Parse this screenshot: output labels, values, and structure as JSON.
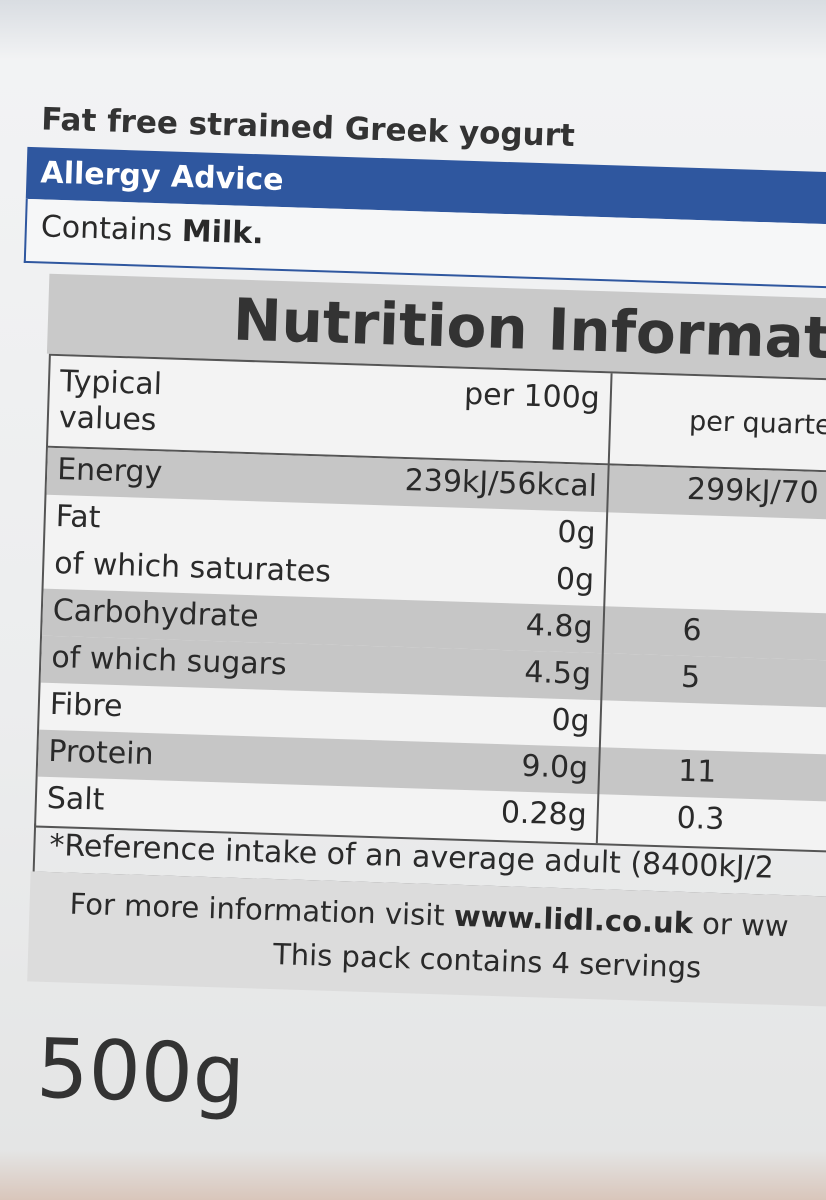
{
  "product": {
    "name": "Fat free strained Greek yogurt"
  },
  "allergy": {
    "heading": "Allergy Advice",
    "contains": "Contains",
    "allergen": "Milk."
  },
  "nutrition": {
    "title": "Nutrition Informatio",
    "header": {
      "label": "Typical values",
      "per100": "per 100g",
      "perServing": "per quarte"
    },
    "rows": [
      {
        "label": "Energy",
        "per100": "239kJ/56kcal",
        "perServing": "299kJ/70"
      },
      {
        "label": "Fat",
        "per100": "0g"
      },
      {
        "label": "of which saturates",
        "per100": "0g"
      },
      {
        "label": "Carbohydrate",
        "per100": "4.8g",
        "perServing": "6"
      },
      {
        "label": "of which sugars",
        "per100": "4.5g",
        "perServing": "5"
      },
      {
        "label": "Fibre",
        "per100": "0g"
      },
      {
        "label": "Protein",
        "per100": "9.0g",
        "perServing": "11"
      },
      {
        "label": "Salt",
        "per100": "0.28g",
        "perServing": "0.3"
      }
    ],
    "footnote": "*Reference intake of an average adult (8400kJ/2"
  },
  "info": {
    "text": "For more information visit",
    "url": "www.lidl.co.uk",
    "more": "or ww",
    "servings": "This pack contains 4 servings"
  },
  "weight": "500g"
}
